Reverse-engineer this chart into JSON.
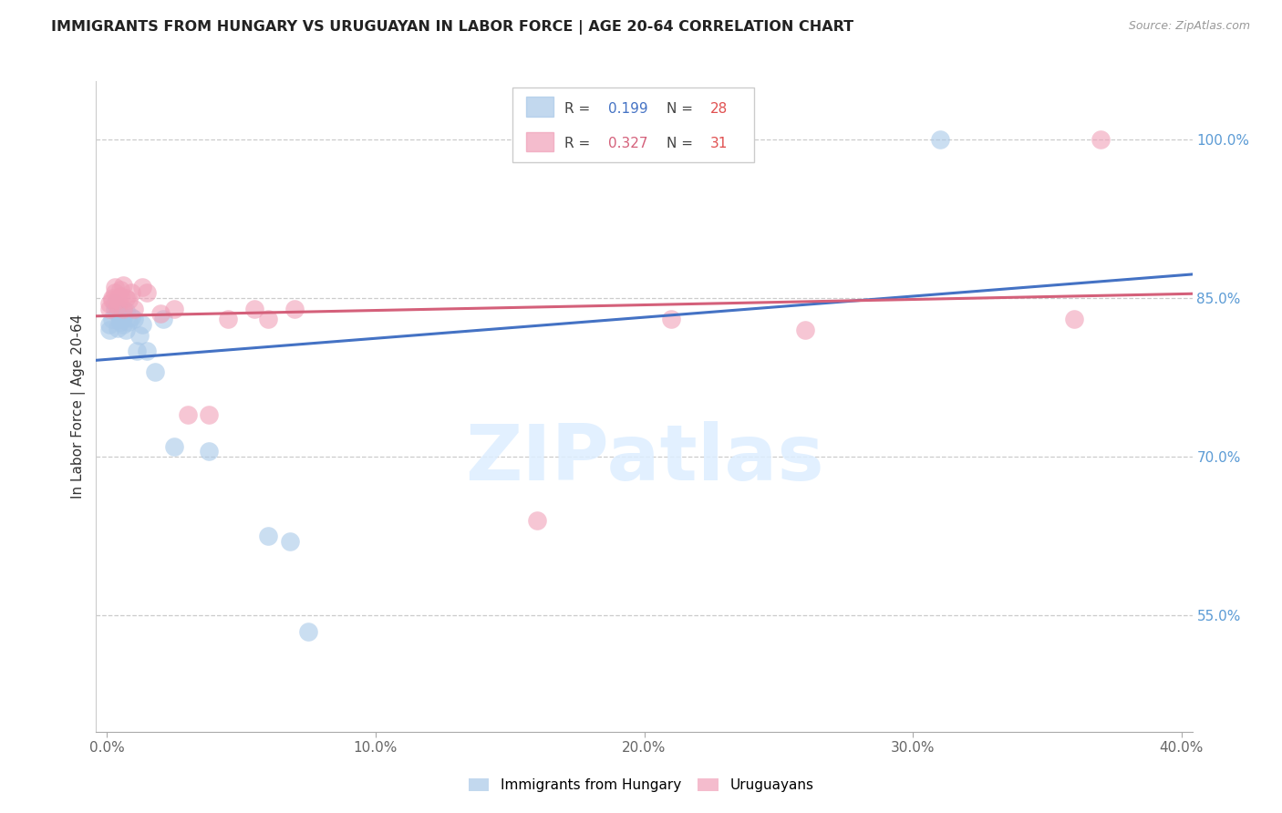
{
  "title": "IMMIGRANTS FROM HUNGARY VS URUGUAYAN IN LABOR FORCE | AGE 20-64 CORRELATION CHART",
  "source": "Source: ZipAtlas.com",
  "xlabel_ticks": [
    "0.0%",
    "10.0%",
    "20.0%",
    "30.0%",
    "40.0%"
  ],
  "xlabel_vals": [
    0.0,
    0.1,
    0.2,
    0.3,
    0.4
  ],
  "ylabel": "In Labor Force | Age 20-64",
  "right_yticks": [
    0.55,
    0.7,
    0.85,
    1.0
  ],
  "right_ytick_labels": [
    "55.0%",
    "70.0%",
    "85.0%",
    "100.0%"
  ],
  "xlim": [
    -0.004,
    0.404
  ],
  "ylim": [
    0.44,
    1.055
  ],
  "blue_R": "0.199",
  "blue_N": "28",
  "pink_R": "0.327",
  "pink_N": "31",
  "blue_color": "#a8c8e8",
  "pink_color": "#f0a0b8",
  "blue_line_color": "#4472c4",
  "pink_line_color": "#d4607a",
  "watermark_color": "#ddeeff",
  "blue_x": [
    0.001,
    0.001,
    0.002,
    0.003,
    0.003,
    0.004,
    0.004,
    0.005,
    0.005,
    0.006,
    0.006,
    0.007,
    0.007,
    0.008,
    0.009,
    0.01,
    0.011,
    0.012,
    0.013,
    0.015,
    0.018,
    0.021,
    0.025,
    0.038,
    0.06,
    0.068,
    0.075,
    0.31
  ],
  "blue_y": [
    0.82,
    0.825,
    0.83,
    0.84,
    0.845,
    0.835,
    0.822,
    0.83,
    0.828,
    0.832,
    0.825,
    0.838,
    0.82,
    0.828,
    0.832,
    0.83,
    0.8,
    0.815,
    0.825,
    0.8,
    0.78,
    0.83,
    0.71,
    0.705,
    0.625,
    0.62,
    0.535,
    1.0
  ],
  "pink_x": [
    0.001,
    0.001,
    0.002,
    0.002,
    0.003,
    0.003,
    0.004,
    0.004,
    0.005,
    0.005,
    0.006,
    0.006,
    0.007,
    0.008,
    0.009,
    0.01,
    0.013,
    0.015,
    0.02,
    0.025,
    0.03,
    0.038,
    0.045,
    0.055,
    0.06,
    0.07,
    0.16,
    0.21,
    0.26,
    0.36,
    0.37
  ],
  "pink_y": [
    0.84,
    0.845,
    0.848,
    0.85,
    0.855,
    0.86,
    0.842,
    0.848,
    0.852,
    0.858,
    0.84,
    0.862,
    0.85,
    0.848,
    0.855,
    0.84,
    0.86,
    0.855,
    0.835,
    0.84,
    0.74,
    0.74,
    0.83,
    0.84,
    0.83,
    0.84,
    0.64,
    0.83,
    0.82,
    0.83,
    1.0
  ],
  "watermark": "ZIPatlas",
  "figsize": [
    14.06,
    8.92
  ],
  "dpi": 100
}
